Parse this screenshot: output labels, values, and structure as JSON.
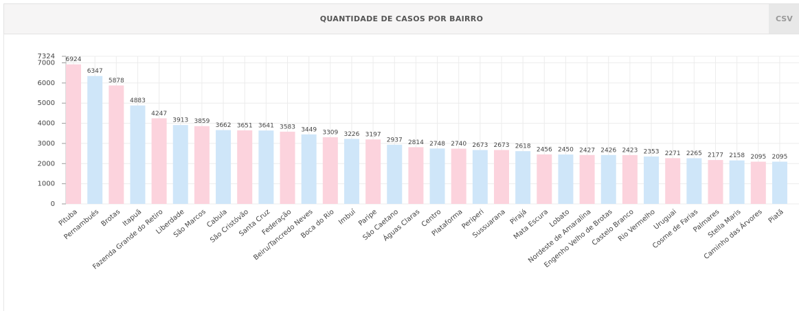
{
  "header": {
    "title": "QUANTIDADE DE CASOS POR BAIRRO",
    "button": "CSV"
  },
  "chart_data": {
    "type": "bar",
    "categories": [
      "Pituba",
      "Pernambués",
      "Brotas",
      "Itapuã",
      "Fazenda Grande do Retiro",
      "Liberdade",
      "São Marcos",
      "Cabula",
      "São Cristóvão",
      "Santa Cruz",
      "Federação",
      "Beiru/Tancredo Neves",
      "Boca do Rio",
      "Imbuí",
      "Paripe",
      "São Caetano",
      "Águas Claras",
      "Centro",
      "Plataforma",
      "Periperi",
      "Sussuarana",
      "Pirajá",
      "Mata Escura",
      "Lobato",
      "Nordeste de Amaralina",
      "Engenho Velho de Brotas",
      "Castelo Branco",
      "Rio Vermelho",
      "Uruguai",
      "Cosme de Farias",
      "Palmares",
      "Stella Maris",
      "Caminho das Árvores",
      "Piatã"
    ],
    "values": [
      6924,
      6347,
      5878,
      4883,
      4247,
      3913,
      3859,
      3662,
      3651,
      3641,
      3583,
      3449,
      3309,
      3226,
      3197,
      2937,
      2814,
      2748,
      2740,
      2673,
      2673,
      2618,
      2456,
      2450,
      2427,
      2426,
      2423,
      2353,
      2271,
      2265,
      2177,
      2158,
      2095,
      2095
    ],
    "colors": [
      "#fcd3dd",
      "#cfe6f9"
    ],
    "ylim": [
      0,
      7324
    ],
    "yticks": [
      0,
      1000,
      2000,
      3000,
      4000,
      5000,
      6000,
      7000,
      7324
    ],
    "grid": true
  }
}
